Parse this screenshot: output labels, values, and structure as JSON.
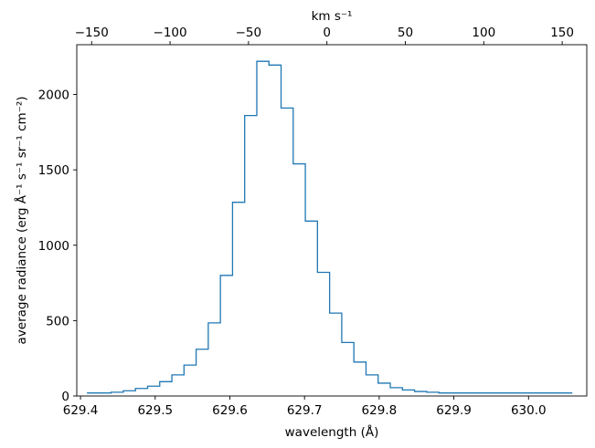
{
  "chart_data": {
    "type": "line",
    "step": "histogram",
    "x": [
      629.4167,
      629.433,
      629.4492,
      629.4655,
      629.4817,
      629.498,
      629.5142,
      629.5305,
      629.5467,
      629.563,
      629.5792,
      629.5955,
      629.6117,
      629.628,
      629.6442,
      629.6605,
      629.6767,
      629.693,
      629.7092,
      629.7255,
      629.7417,
      629.758,
      629.7742,
      629.7905,
      629.8067,
      629.823,
      629.8392,
      629.8555,
      629.8717,
      629.888,
      629.9042,
      629.9205,
      629.9367,
      629.953,
      629.9692,
      629.9855,
      630.0017,
      630.018,
      630.0342,
      630.0505
    ],
    "values": [
      20,
      20,
      25,
      35,
      50,
      65,
      95,
      140,
      205,
      310,
      485,
      800,
      1285,
      1860,
      2220,
      2195,
      1910,
      1540,
      1160,
      820,
      550,
      355,
      225,
      140,
      85,
      55,
      40,
      30,
      25,
      20,
      20,
      20,
      20,
      20,
      20,
      20,
      20,
      20,
      20,
      20
    ],
    "series_color": "#1f77b4",
    "xlabel": "wavelength (Å)",
    "ylabel": "average radiance (erg Å⁻¹ s⁻¹ sr⁻¹ cm⁻²)",
    "top_xlabel": "km s⁻¹",
    "xlim": [
      629.395,
      630.078
    ],
    "ylim": [
      0,
      2330
    ],
    "xticks": [
      629.4,
      629.5,
      629.6,
      629.7,
      629.8,
      629.9,
      630.0
    ],
    "xtick_labels": [
      "629.4",
      "629.5",
      "629.6",
      "629.7",
      "629.8",
      "629.9",
      "630.0"
    ],
    "yticks": [
      0,
      500,
      1000,
      1500,
      2000
    ],
    "ytick_labels": [
      "0",
      "500",
      "1000",
      "1500",
      "2000"
    ],
    "top_ticks": [
      -150,
      -100,
      -50,
      0,
      50,
      100,
      150
    ],
    "top_tick_labels": [
      "−150",
      "−100",
      "−50",
      "0",
      "50",
      "100",
      "150"
    ],
    "top_center_wavelength": 629.73,
    "speed_of_light_kms": 299792.458,
    "grid": false
  }
}
